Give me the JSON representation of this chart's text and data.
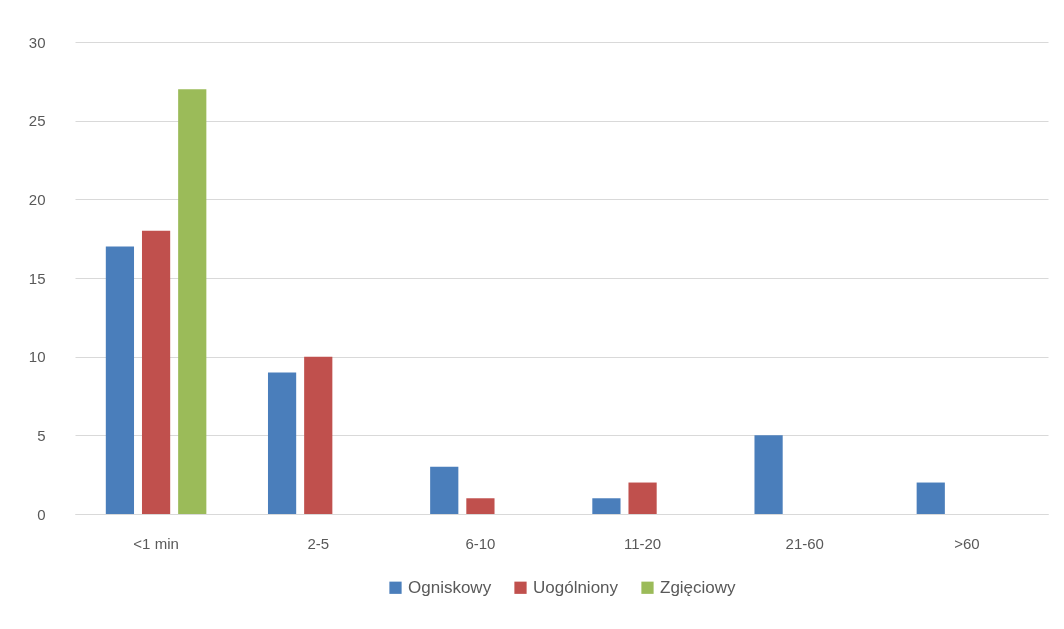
{
  "chart_data": {
    "type": "bar",
    "categories": [
      "<1 min",
      "2-5",
      "6-10",
      "11-20",
      "21-60",
      ">60"
    ],
    "series": [
      {
        "name": "Ogniskowy",
        "color": "#4a7ebb",
        "values": [
          17,
          9,
          3,
          1,
          5,
          2
        ]
      },
      {
        "name": "Uogólniony",
        "color": "#c0504d",
        "values": [
          18,
          10,
          1,
          2,
          null,
          null
        ]
      },
      {
        "name": "Zgięciowy",
        "color": "#9bbb59",
        "values": [
          27,
          null,
          null,
          null,
          null,
          null
        ]
      }
    ],
    "ylim": [
      0,
      30
    ],
    "yticks": [
      0,
      5,
      10,
      15,
      20,
      25,
      30
    ],
    "grid": "y",
    "legend": "bottom"
  }
}
